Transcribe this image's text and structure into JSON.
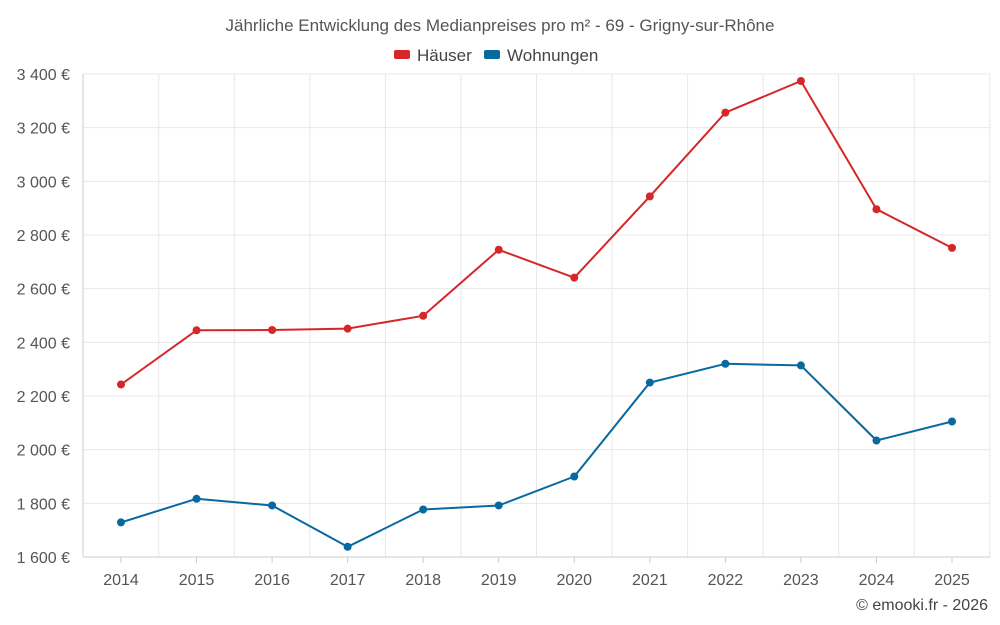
{
  "chart_data": {
    "type": "line",
    "title": "Jährliche Entwicklung des Medianpreises pro m² - 69 - Grigny-sur-Rhône",
    "categories": [
      "2014",
      "2015",
      "2016",
      "2017",
      "2018",
      "2019",
      "2020",
      "2021",
      "2022",
      "2023",
      "2024",
      "2025"
    ],
    "series": [
      {
        "name": "Häuser",
        "color": "#d62728",
        "values": [
          2243,
          2445,
          2446,
          2451,
          2499,
          2745,
          2641,
          2944,
          3256,
          3374,
          2896,
          2752
        ]
      },
      {
        "name": "Wohnungen",
        "color": "#0868a0",
        "values": [
          1729,
          1817,
          1792,
          1638,
          1777,
          1792,
          1900,
          2250,
          2320,
          2314,
          2034,
          2105
        ]
      }
    ],
    "ylim": [
      1600,
      3400
    ],
    "yticks": [
      1600,
      1800,
      2000,
      2200,
      2400,
      2600,
      2800,
      3000,
      3200,
      3400
    ],
    "ytick_labels": [
      "1 600 €",
      "1 800 €",
      "2 000 €",
      "2 200 €",
      "2 400 €",
      "2 600 €",
      "2 800 €",
      "3 000 €",
      "3 200 €",
      "3 400 €"
    ],
    "xlabel": "",
    "ylabel": "",
    "legend": "top-center",
    "grid": true
  },
  "credit": "© emooki.fr - 2026"
}
